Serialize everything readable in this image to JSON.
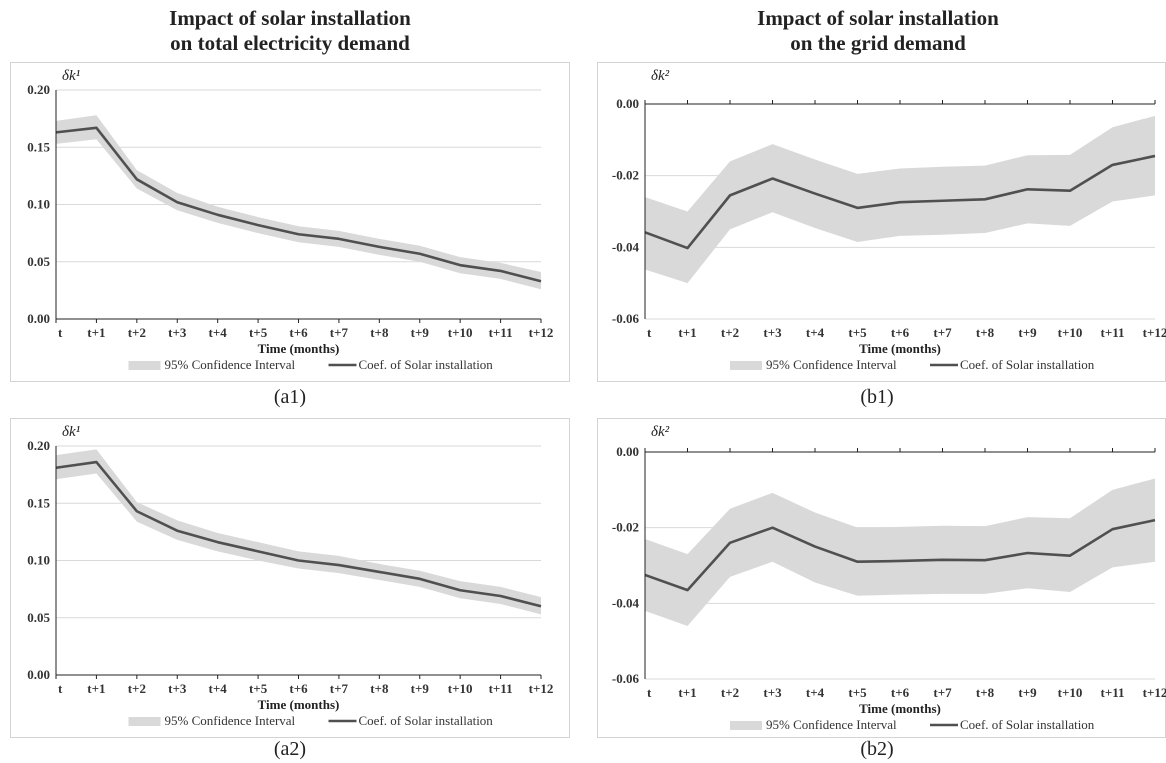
{
  "column_titles": {
    "left": [
      "Impact of solar installation",
      "on total electricity demand"
    ],
    "right": [
      "Impact of solar installation",
      "on the grid demand"
    ]
  },
  "chart_data": [
    {
      "id": "a1",
      "type": "line",
      "caption": "(a1)",
      "ylabel": "δk¹",
      "xlabel": "Time (months)",
      "ylim": [
        0,
        0.2
      ],
      "yticks": [
        0,
        0.05,
        0.1,
        0.15,
        0.2
      ],
      "ytick_labels": [
        "0.00",
        "0.05",
        "0.10",
        "0.15",
        "0.20"
      ],
      "grid": true,
      "legend_position": "bottom",
      "categories": [
        "t",
        "t+1",
        "t+2",
        "t+3",
        "t+4",
        "t+5",
        "t+6",
        "t+7",
        "t+8",
        "t+9",
        "t+10",
        "t+11",
        "t+12"
      ],
      "series": [
        {
          "name": "Coef. of Solar installation",
          "values": [
            0.163,
            0.167,
            0.122,
            0.102,
            0.091,
            0.082,
            0.074,
            0.07,
            0.063,
            0.057,
            0.047,
            0.042,
            0.033
          ]
        },
        {
          "name": "95% Confidence Interval",
          "lower": [
            0.153,
            0.157,
            0.114,
            0.095,
            0.084,
            0.075,
            0.067,
            0.063,
            0.056,
            0.05,
            0.04,
            0.035,
            0.026
          ],
          "upper": [
            0.173,
            0.178,
            0.13,
            0.11,
            0.098,
            0.089,
            0.081,
            0.077,
            0.07,
            0.064,
            0.054,
            0.049,
            0.041
          ]
        }
      ]
    },
    {
      "id": "b1",
      "type": "line",
      "caption": "(b1)",
      "ylabel": "δk²",
      "xlabel": "Time (months)",
      "ylim": [
        -0.06,
        0
      ],
      "yticks": [
        -0.06,
        -0.04,
        -0.02,
        0
      ],
      "ytick_labels": [
        "-0.06",
        "-0.04",
        "-0.02",
        "0.00"
      ],
      "grid": true,
      "legend_position": "bottom",
      "categories": [
        "t",
        "t+1",
        "t+2",
        "t+3",
        "t+4",
        "t+5",
        "t+6",
        "t+7",
        "t+8",
        "t+9",
        "t+10",
        "t+11",
        "t+12"
      ],
      "series": [
        {
          "name": "Coef. of Solar installation",
          "values": [
            -0.0358,
            -0.0402,
            -0.0255,
            -0.0208,
            -0.025,
            -0.029,
            -0.0274,
            -0.027,
            -0.0266,
            -0.0238,
            -0.0242,
            -0.017,
            -0.0145
          ]
        },
        {
          "name": "95% Confidence Interval",
          "lower": [
            -0.0462,
            -0.05,
            -0.035,
            -0.0302,
            -0.0346,
            -0.0385,
            -0.0368,
            -0.0365,
            -0.036,
            -0.0333,
            -0.034,
            -0.0272,
            -0.0255
          ],
          "upper": [
            -0.026,
            -0.03,
            -0.016,
            -0.0112,
            -0.0155,
            -0.0195,
            -0.018,
            -0.0175,
            -0.0172,
            -0.0143,
            -0.0142,
            -0.0065,
            -0.0033
          ]
        }
      ]
    },
    {
      "id": "a2",
      "type": "line",
      "caption": "(a2)",
      "ylabel": "δk¹",
      "xlabel": "Time (months)",
      "ylim": [
        0,
        0.2
      ],
      "yticks": [
        0,
        0.05,
        0.1,
        0.15,
        0.2
      ],
      "ytick_labels": [
        "0.00",
        "0.05",
        "0.10",
        "0.15",
        "0.20"
      ],
      "grid": true,
      "legend_position": "bottom",
      "categories": [
        "t",
        "t+1",
        "t+2",
        "t+3",
        "t+4",
        "t+5",
        "t+6",
        "t+7",
        "t+8",
        "t+9",
        "t+10",
        "t+11",
        "t+12"
      ],
      "series": [
        {
          "name": "Coef. of Solar installation",
          "values": [
            0.181,
            0.186,
            0.143,
            0.126,
            0.116,
            0.108,
            0.1,
            0.096,
            0.09,
            0.084,
            0.074,
            0.069,
            0.06
          ]
        },
        {
          "name": "95% Confidence Interval",
          "lower": [
            0.171,
            0.176,
            0.134,
            0.118,
            0.108,
            0.1,
            0.093,
            0.089,
            0.083,
            0.077,
            0.067,
            0.062,
            0.053
          ],
          "upper": [
            0.192,
            0.197,
            0.151,
            0.135,
            0.124,
            0.116,
            0.108,
            0.104,
            0.097,
            0.091,
            0.082,
            0.077,
            0.068
          ]
        }
      ]
    },
    {
      "id": "b2",
      "type": "line",
      "caption": "(b2)",
      "ylabel": "δk²",
      "xlabel": "Time (months)",
      "ylim": [
        -0.06,
        0
      ],
      "yticks": [
        -0.06,
        -0.04,
        -0.02,
        0
      ],
      "ytick_labels": [
        "-0.06",
        "-0.04",
        "-0.02",
        "0.00"
      ],
      "grid": true,
      "legend_position": "bottom",
      "categories": [
        "t",
        "t+1",
        "t+2",
        "t+3",
        "t+4",
        "t+5",
        "t+6",
        "t+7",
        "t+8",
        "t+9",
        "t+10",
        "t+11",
        "t+12"
      ],
      "series": [
        {
          "name": "Coef. of Solar installation",
          "values": [
            -0.0325,
            -0.0365,
            -0.024,
            -0.02,
            -0.025,
            -0.029,
            -0.0288,
            -0.0285,
            -0.0286,
            -0.0267,
            -0.0274,
            -0.0204,
            -0.018
          ]
        },
        {
          "name": "95% Confidence Interval",
          "lower": [
            -0.042,
            -0.046,
            -0.033,
            -0.029,
            -0.0345,
            -0.038,
            -0.0377,
            -0.0375,
            -0.0375,
            -0.036,
            -0.037,
            -0.0305,
            -0.029
          ],
          "upper": [
            -0.023,
            -0.027,
            -0.015,
            -0.0108,
            -0.016,
            -0.02,
            -0.0198,
            -0.0195,
            -0.0196,
            -0.0172,
            -0.0175,
            -0.01,
            -0.007
          ]
        }
      ]
    }
  ],
  "colors": {
    "line": "#505050",
    "band": "#d9d9d9",
    "grid": "#d9d9d9",
    "axis": "#222222"
  }
}
